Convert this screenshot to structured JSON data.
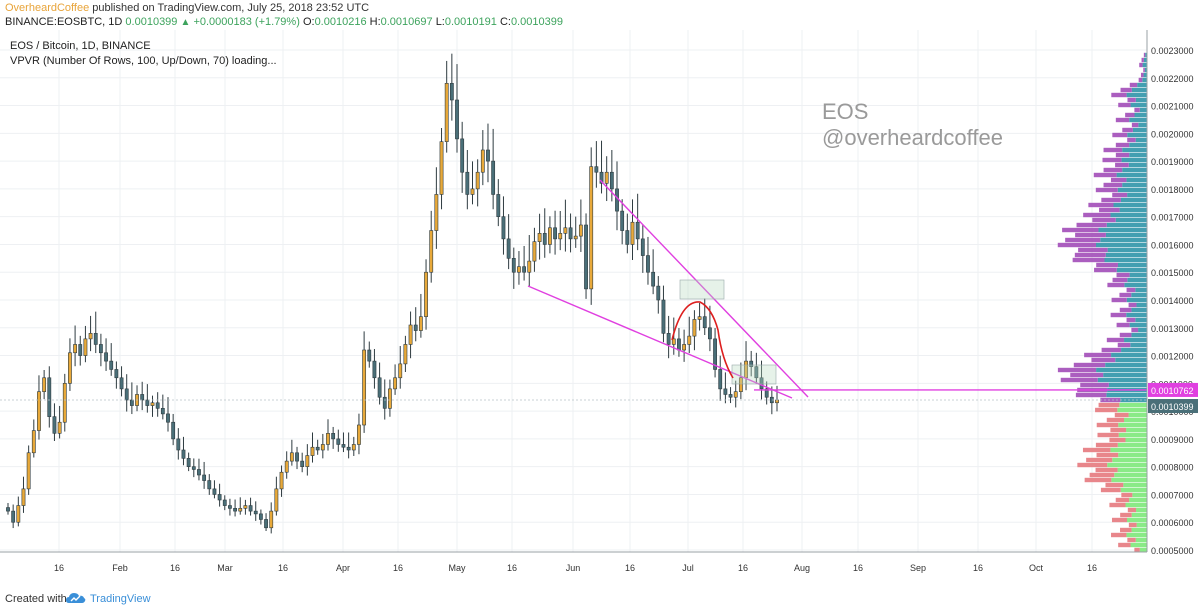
{
  "header": {
    "author": "OverheardCoffee",
    "published": "published on TradingView.com, July 25, 2018 23:52 UTC",
    "symbol": "BINANCE:EOSBTC, 1D",
    "last": "0.0010399",
    "change": "+0.0000183 (+1.79%)",
    "o_label": "O:",
    "o_val": "0.0010216",
    "h_label": "H:",
    "h_val": "0.0010697",
    "l_label": "L:",
    "l_val": "0.0010191",
    "c_label": "C:",
    "c_val": "0.0010399"
  },
  "legend": {
    "title": "EOS / Bitcoin, 1D, BINANCE",
    "indicator": "VPVR (Number Of Rows, 100, Up/Down, 70) loading..."
  },
  "watermark": {
    "line1": "EOS",
    "line2": "@overheardcoffee"
  },
  "footer": {
    "created": "Created with",
    "brand": "TradingView",
    "logo_icon": "tradingview-cloud-icon"
  },
  "colors": {
    "candle_up": "#e8a93a",
    "candle_down": "#4a6f78",
    "trendline": "#e040e0",
    "arc": "#dd1f1f",
    "price_tag": "#e040e0",
    "last_price_tag": "#4a6f78",
    "vp_upper_up": "#2f95a8",
    "vp_upper_down": "#a24db8",
    "vp_lower_up": "#7de87a",
    "vp_lower_down": "#e6797e"
  },
  "chart_data": {
    "type": "candlestick",
    "title": "EOS / Bitcoin, 1D, BINANCE",
    "price_range": [
      0.0005,
      0.0023
    ],
    "y_ticks": [
      "0.0005000",
      "0.0006000",
      "0.0007000",
      "0.0008000",
      "0.0009000",
      "0.0010000",
      "0.0011000",
      "0.0012000",
      "0.0013000",
      "0.0014000",
      "0.0015000",
      "0.0016000",
      "0.0017000",
      "0.0018000",
      "0.0019000",
      "0.0020000",
      "0.0021000",
      "0.0022000",
      "0.0023000"
    ],
    "x_ticks": [
      "16",
      "Feb",
      "16",
      "Mar",
      "16",
      "Apr",
      "16",
      "May",
      "16",
      "Jun",
      "16",
      "Jul",
      "16",
      "Aug",
      "16",
      "Sep",
      "16",
      "Oct",
      "16"
    ],
    "horizontal_level": "0.0010762",
    "last_price": "0.0010399",
    "candles_sampled_daily_close": [
      0.00064,
      0.0006,
      0.00066,
      0.00072,
      0.00085,
      0.00093,
      0.00107,
      0.00112,
      0.00098,
      0.00092,
      0.00096,
      0.0011,
      0.00121,
      0.00124,
      0.0012,
      0.00126,
      0.00128,
      0.00124,
      0.00121,
      0.00118,
      0.00115,
      0.00112,
      0.00108,
      0.00104,
      0.00102,
      0.00106,
      0.00104,
      0.00102,
      0.00103,
      0.00101,
      0.00099,
      0.00096,
      0.0009,
      0.00086,
      0.00083,
      0.0008,
      0.00079,
      0.00077,
      0.00075,
      0.00072,
      0.0007,
      0.00068,
      0.00066,
      0.00065,
      0.00064,
      0.00065,
      0.00066,
      0.00064,
      0.00063,
      0.00061,
      0.00058,
      0.00064,
      0.00072,
      0.00078,
      0.00082,
      0.00085,
      0.00082,
      0.0008,
      0.00084,
      0.00087,
      0.00086,
      0.00088,
      0.00092,
      0.0009,
      0.00088,
      0.00087,
      0.00086,
      0.00088,
      0.00095,
      0.00122,
      0.00118,
      0.00112,
      0.00105,
      0.00101,
      0.00108,
      0.00112,
      0.00117,
      0.00124,
      0.00131,
      0.00129,
      0.00134,
      0.0015,
      0.00165,
      0.00178,
      0.00197,
      0.00218,
      0.00212,
      0.00198,
      0.00186,
      0.00178,
      0.0018,
      0.00186,
      0.00194,
      0.0019,
      0.00178,
      0.0017,
      0.00162,
      0.00155,
      0.0015,
      0.00152,
      0.0015,
      0.00154,
      0.00161,
      0.00164,
      0.0016,
      0.00166,
      0.00162,
      0.00164,
      0.00166,
      0.00162,
      0.00163,
      0.00167,
      0.00144,
      0.00188,
      0.00186,
      0.00182,
      0.00186,
      0.0018,
      0.00172,
      0.00165,
      0.0016,
      0.00168,
      0.00162,
      0.00156,
      0.0015,
      0.00145,
      0.0014,
      0.00128,
      0.00124,
      0.00126,
      0.00122,
      0.00124,
      0.00127,
      0.00133,
      0.00134,
      0.0013,
      0.00126,
      0.00115,
      0.00108,
      0.00106,
      0.00105,
      0.00107,
      0.00112,
      0.00118,
      0.00116,
      0.00112,
      0.00108,
      0.00105,
      0.00103,
      0.00104
    ],
    "volume_profile_note": "VPVR rows split at last price; upper rows up/down, lower rows up/down"
  }
}
